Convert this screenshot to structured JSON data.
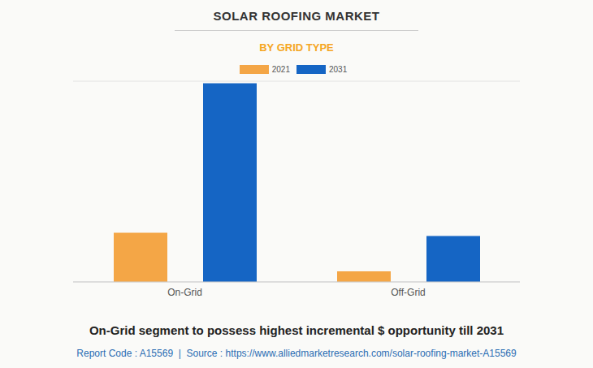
{
  "chart_data": {
    "type": "bar",
    "title": "SOLAR ROOFING MARKET",
    "subtitle": "BY GRID TYPE",
    "categories": [
      "On-Grid",
      "Off-Grid"
    ],
    "series": [
      {
        "name": "2021",
        "color": "#f4a646",
        "values": [
          2.45,
          0.53
        ]
      },
      {
        "name": "2031",
        "color": "#1565c4",
        "values": [
          9.9,
          2.29
        ]
      }
    ],
    "ylim": [
      0,
      10
    ],
    "yticks": [
      0,
      1,
      2,
      3,
      4,
      5,
      6,
      7,
      8,
      9,
      10
    ],
    "grid": true,
    "tick_labels": "x",
    "legend": "top",
    "annotations": [
      "On-Grid segment to possess highest incremental $ opportunity till 2031",
      "Report Code : A15569  |  Source : https://www.alliedmarketresearch.com/solar-roofing-market-A15569"
    ]
  }
}
